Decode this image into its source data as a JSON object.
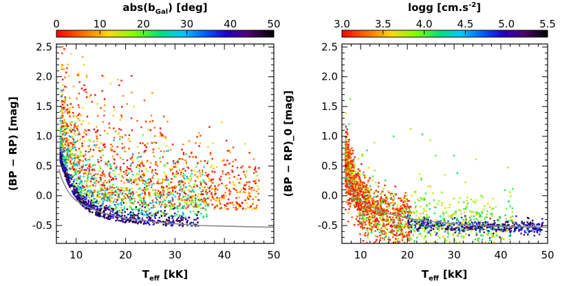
{
  "chart_data": [
    {
      "type": "scatter",
      "panel": "left",
      "xlabel": "T_eff [kK]",
      "xlabel_main": "T",
      "xlabel_sub": "eff",
      "xlabel_unit": "[kK]",
      "ylabel": "(BP − RP) [mag]",
      "xlim": [
        6,
        50
      ],
      "ylim": [
        -0.8,
        2.55
      ],
      "xticks": [
        "10",
        "20",
        "30",
        "40",
        "50"
      ],
      "xtick_values": [
        10,
        20,
        30,
        40,
        50
      ],
      "yticks": [
        "-0.5",
        "0.0",
        "0.5",
        "1.0",
        "1.5",
        "2.0",
        "2.5"
      ],
      "ytick_values": [
        -0.5,
        0.0,
        0.5,
        1.0,
        1.5,
        2.0,
        2.5
      ],
      "colorbar": {
        "label": "abs(b_Gal) [deg]",
        "label_main": "abs(b",
        "label_sub": "Gal",
        "label_end": ") [deg]",
        "range": [
          0,
          50
        ],
        "ticks": [
          "0",
          "10",
          "20",
          "30",
          "40",
          "50"
        ],
        "tick_values": [
          0,
          10,
          20,
          30,
          40,
          50
        ],
        "colormap": "rainbow-reversed-to-black"
      },
      "reference_curve": {
        "color": "#888888",
        "x": [
          6.5,
          7,
          8,
          9,
          10,
          12,
          15,
          20,
          25,
          30,
          35,
          40,
          45,
          50
        ],
        "y": [
          0.45,
          0.3,
          0.12,
          0.0,
          -0.08,
          -0.18,
          -0.28,
          -0.38,
          -0.43,
          -0.47,
          -0.5,
          -0.51,
          -0.52,
          -0.53
        ]
      },
      "description": "Scatter of stars; reddest (low latitude) points scattered to high color excess, dense black sequence near the intrinsic curve at low Teff."
    },
    {
      "type": "scatter",
      "panel": "right",
      "xlabel": "T_eff [kK]",
      "xlabel_main": "T",
      "xlabel_sub": "eff",
      "xlabel_unit": "[kK]",
      "ylabel": "(BP − RP)_0 [mag]",
      "xlim": [
        6,
        50
      ],
      "ylim": [
        -0.8,
        2.55
      ],
      "xticks": [
        "10",
        "20",
        "30",
        "40",
        "50"
      ],
      "xtick_values": [
        10,
        20,
        30,
        40,
        50
      ],
      "yticks": [
        "-0.5",
        "0.0",
        "0.5",
        "1.0",
        "1.5",
        "2.0",
        "2.5"
      ],
      "ytick_values": [
        -0.5,
        0.0,
        0.5,
        1.0,
        1.5,
        2.0,
        2.5
      ],
      "colorbar": {
        "label": "logg [cm.s^-2]",
        "label_main": "logg [cm.s",
        "label_sup": "-2",
        "label_end": "]",
        "range": [
          3.0,
          5.5
        ],
        "ticks": [
          "3.0",
          "3.5",
          "4.0",
          "4.5",
          "5.0",
          "5.5"
        ],
        "tick_values": [
          3.0,
          3.5,
          4.0,
          4.5,
          5.0,
          5.5
        ],
        "colormap": "rainbow-reversed-to-black"
      },
      "reference_curve": {
        "color": "#888888",
        "x": [
          6.5,
          7,
          8,
          9,
          10,
          12,
          15,
          20,
          25,
          30,
          35,
          40,
          45,
          50
        ],
        "y": [
          0.45,
          0.3,
          0.12,
          0.0,
          -0.08,
          -0.18,
          -0.28,
          -0.38,
          -0.43,
          -0.47,
          -0.5,
          -0.51,
          -0.52,
          -0.53
        ]
      },
      "description": "Dereddened colors; dense red (low logg) clump near Teff ~7-12 kK, black high-logg sequence at hot end."
    }
  ]
}
